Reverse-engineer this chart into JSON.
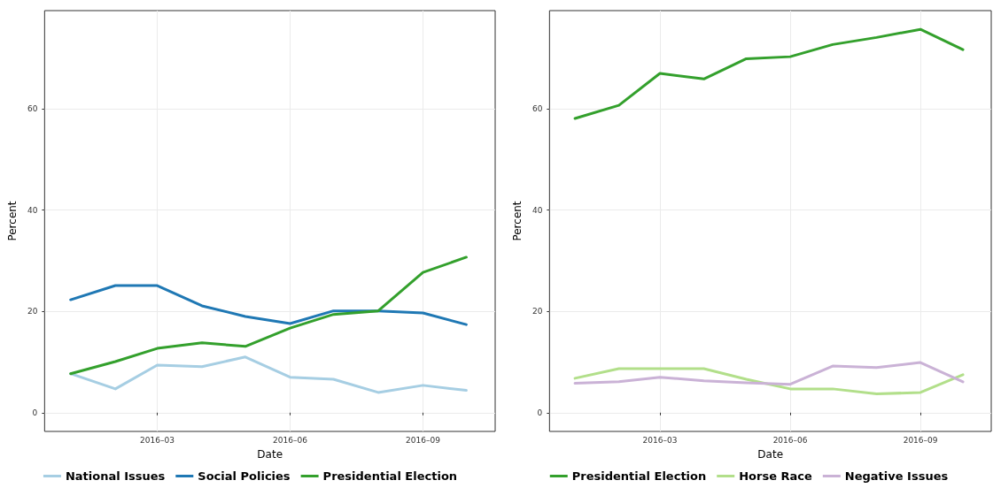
{
  "chart_data": [
    {
      "type": "line",
      "xlabel": "Date",
      "ylabel": "Percent",
      "x": [
        "2016-01-01",
        "2016-02-01",
        "2016-03-01",
        "2016-04-01",
        "2016-05-01",
        "2016-06-01",
        "2016-07-01",
        "2016-08-01",
        "2016-09-01",
        "2016-10-01"
      ],
      "xlim": [
        "2015-12-14",
        "2016-10-21"
      ],
      "xticks": [
        {
          "value": "2016-03-01",
          "label": "2016–03"
        },
        {
          "value": "2016-06-01",
          "label": "2016–06"
        },
        {
          "value": "2016-09-01",
          "label": "2016–09"
        }
      ],
      "ylim": [
        -3.7,
        79.4
      ],
      "yticks": [
        0,
        20,
        40,
        60
      ],
      "grid": true,
      "legend": "bottom",
      "marker": "none",
      "line_style": "solid",
      "series": [
        {
          "name": "National Issues",
          "color": "#a6cee3",
          "values": [
            7.7,
            4.7,
            9.4,
            9.1,
            11.0,
            7.0,
            6.6,
            4.0,
            5.4,
            4.4
          ]
        },
        {
          "name": "Social Policies",
          "color": "#1f78b4",
          "values": [
            22.3,
            25.1,
            25.1,
            21.1,
            19.0,
            17.6,
            20.1,
            20.1,
            19.7,
            17.4
          ]
        },
        {
          "name": "Presidential Election",
          "color": "#33a02c",
          "values": [
            7.7,
            10.1,
            12.7,
            13.8,
            13.1,
            16.7,
            19.4,
            20.1,
            27.7,
            30.7
          ]
        }
      ]
    },
    {
      "type": "line",
      "xlabel": "Date",
      "ylabel": "Percent",
      "x": [
        "2016-01-01",
        "2016-02-01",
        "2016-03-01",
        "2016-04-01",
        "2016-05-01",
        "2016-06-01",
        "2016-07-01",
        "2016-08-01",
        "2016-09-01",
        "2016-10-01"
      ],
      "xlim": [
        "2015-12-14",
        "2016-10-21"
      ],
      "xticks": [
        {
          "value": "2016-03-01",
          "label": "2016–03"
        },
        {
          "value": "2016-06-01",
          "label": "2016–06"
        },
        {
          "value": "2016-09-01",
          "label": "2016–09"
        }
      ],
      "ylim": [
        -3.7,
        79.4
      ],
      "yticks": [
        0,
        20,
        40,
        60
      ],
      "grid": true,
      "legend": "bottom",
      "marker": "none",
      "line_style": "solid",
      "series": [
        {
          "name": "Presidential Election",
          "color": "#33a02c",
          "values": [
            58.1,
            60.7,
            67.0,
            65.9,
            69.9,
            70.3,
            72.7,
            74.1,
            75.7,
            71.7
          ]
        },
        {
          "name": "Horse Race",
          "color": "#b2df8a",
          "values": [
            6.8,
            8.7,
            8.7,
            8.7,
            6.6,
            4.7,
            4.7,
            3.7,
            4.0,
            7.5
          ]
        },
        {
          "name": "Negative Issues",
          "color": "#cab2d6",
          "values": [
            5.8,
            6.1,
            7.0,
            6.3,
            5.9,
            5.6,
            9.2,
            8.9,
            9.9,
            6.1
          ]
        }
      ]
    }
  ]
}
